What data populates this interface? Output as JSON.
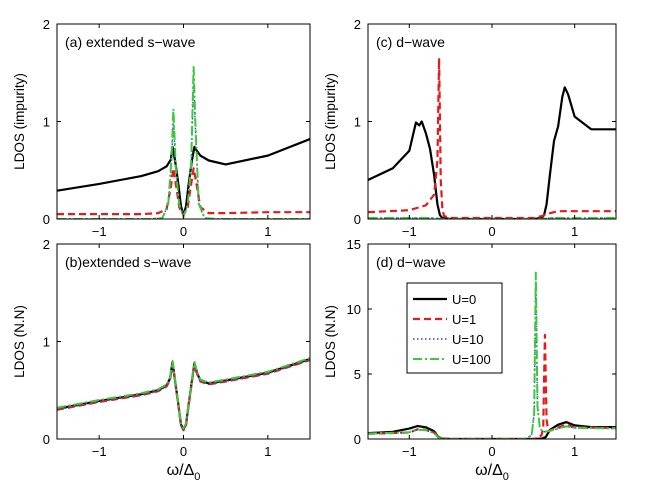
{
  "figure": {
    "xlabel_main": "ω/Δ",
    "xlabel_sub": "0"
  },
  "chart_data": [
    {
      "id": "a",
      "type": "line",
      "title": "(a) extended s−wave",
      "xlabel": "",
      "ylabel": "LDOS (impurity)",
      "xlim": [
        -1.5,
        1.5
      ],
      "ylim": [
        0,
        2
      ],
      "xticks": [
        -1,
        0,
        1
      ],
      "xtick_labels": [
        "−1",
        "0",
        "1"
      ],
      "yticks": [
        0,
        1,
        2
      ],
      "ytick_labels": [
        "0",
        "1",
        "2"
      ],
      "series": [
        {
          "name": "U=0",
          "color": "#000000",
          "dash": "",
          "width": 2.2,
          "x": [
            -1.5,
            -1.0,
            -0.5,
            -0.3,
            -0.2,
            -0.15,
            -0.13,
            -0.1,
            -0.06,
            -0.03,
            0.0,
            0.03,
            0.06,
            0.1,
            0.13,
            0.15,
            0.2,
            0.3,
            0.5,
            1.0,
            1.5
          ],
          "y": [
            0.29,
            0.36,
            0.44,
            0.49,
            0.54,
            0.61,
            0.74,
            0.6,
            0.35,
            0.13,
            0.04,
            0.13,
            0.35,
            0.6,
            0.74,
            0.71,
            0.65,
            0.6,
            0.56,
            0.65,
            0.82
          ]
        },
        {
          "name": "U=1",
          "color": "#e41a1c",
          "dash": "7,4",
          "width": 2.2,
          "x": [
            -1.5,
            -0.5,
            -0.3,
            -0.2,
            -0.15,
            -0.12,
            -0.08,
            -0.05,
            0.0,
            0.05,
            0.08,
            0.12,
            0.15,
            0.2,
            0.3,
            0.5,
            1.0,
            1.5
          ],
          "y": [
            0.05,
            0.05,
            0.06,
            0.1,
            0.33,
            0.52,
            0.3,
            0.12,
            0.04,
            0.12,
            0.3,
            0.52,
            0.38,
            0.12,
            0.06,
            0.06,
            0.07,
            0.07
          ]
        },
        {
          "name": "U=10",
          "color": "#1f4fbf",
          "dash": "1.5,2.5",
          "width": 1.4,
          "x": [
            -1.5,
            -0.4,
            -0.25,
            -0.18,
            -0.14,
            -0.12,
            -0.09,
            -0.05,
            0.0,
            0.05,
            0.09,
            0.12,
            0.14,
            0.18,
            0.25,
            0.4,
            1.5
          ],
          "y": [
            0.0,
            0.0,
            0.01,
            0.15,
            0.6,
            1.05,
            0.5,
            0.15,
            0.02,
            0.15,
            0.5,
            1.45,
            0.95,
            0.15,
            0.01,
            0.0,
            0.0
          ]
        },
        {
          "name": "U=100",
          "color": "#3cc83c",
          "dash": "9,3,2,3",
          "width": 2.0,
          "x": [
            -1.5,
            -0.4,
            -0.25,
            -0.18,
            -0.14,
            -0.12,
            -0.09,
            -0.05,
            0.0,
            0.05,
            0.09,
            0.12,
            0.14,
            0.18,
            0.25,
            0.4,
            1.5
          ],
          "y": [
            0.0,
            0.0,
            0.01,
            0.16,
            0.65,
            1.13,
            0.5,
            0.15,
            0.02,
            0.15,
            0.55,
            1.56,
            1.0,
            0.16,
            0.01,
            0.0,
            0.0
          ]
        }
      ]
    },
    {
      "id": "b",
      "type": "line",
      "title": "(b)extended s−wave",
      "xlabel": "ω/Δ0",
      "ylabel": "LDOS (N.N)",
      "xlim": [
        -1.5,
        1.5
      ],
      "ylim": [
        0,
        2
      ],
      "xticks": [
        -1,
        0,
        1
      ],
      "xtick_labels": [
        "−1",
        "0",
        "1"
      ],
      "yticks": [
        0,
        1,
        2
      ],
      "ytick_labels": [
        "0",
        "1",
        "2"
      ],
      "series": [
        {
          "name": "U=0",
          "color": "#000000",
          "dash": "",
          "width": 2.2,
          "x": [
            -1.5,
            -1.0,
            -0.5,
            -0.3,
            -0.2,
            -0.16,
            -0.13,
            -0.1,
            -0.06,
            -0.03,
            0.0,
            0.03,
            0.06,
            0.1,
            0.13,
            0.16,
            0.2,
            0.3,
            0.5,
            1.0,
            1.5
          ],
          "y": [
            0.31,
            0.39,
            0.46,
            0.5,
            0.55,
            0.62,
            0.79,
            0.6,
            0.35,
            0.15,
            0.1,
            0.15,
            0.35,
            0.6,
            0.78,
            0.68,
            0.6,
            0.57,
            0.6,
            0.68,
            0.82
          ]
        },
        {
          "name": "U=1",
          "color": "#e41a1c",
          "dash": "7,4",
          "width": 2.2,
          "x": [
            -1.5,
            -1.0,
            -0.5,
            -0.3,
            -0.2,
            -0.16,
            -0.13,
            -0.1,
            -0.06,
            -0.03,
            0.0,
            0.03,
            0.06,
            0.1,
            0.13,
            0.16,
            0.2,
            0.3,
            0.5,
            1.0,
            1.5
          ],
          "y": [
            0.3,
            0.38,
            0.45,
            0.49,
            0.54,
            0.61,
            0.77,
            0.59,
            0.34,
            0.14,
            0.09,
            0.14,
            0.34,
            0.59,
            0.76,
            0.67,
            0.59,
            0.56,
            0.59,
            0.67,
            0.81
          ]
        },
        {
          "name": "U=10",
          "color": "#1f4fbf",
          "dash": "1.5,2.5",
          "width": 1.4,
          "x": [
            -1.5,
            -1.0,
            -0.5,
            -0.3,
            -0.2,
            -0.16,
            -0.13,
            -0.1,
            -0.06,
            -0.03,
            0.0,
            0.03,
            0.06,
            0.1,
            0.13,
            0.16,
            0.2,
            0.3,
            0.5,
            1.0,
            1.5
          ],
          "y": [
            0.3,
            0.38,
            0.45,
            0.49,
            0.54,
            0.61,
            0.76,
            0.59,
            0.34,
            0.14,
            0.09,
            0.14,
            0.34,
            0.59,
            0.75,
            0.67,
            0.59,
            0.56,
            0.59,
            0.67,
            0.81
          ]
        },
        {
          "name": "U=100",
          "color": "#3cc83c",
          "dash": "9,3,2,3",
          "width": 2.0,
          "x": [
            -1.5,
            -1.0,
            -0.5,
            -0.3,
            -0.2,
            -0.16,
            -0.13,
            -0.1,
            -0.06,
            -0.03,
            0.0,
            0.03,
            0.06,
            0.1,
            0.13,
            0.16,
            0.2,
            0.3,
            0.5,
            1.0,
            1.5
          ],
          "y": [
            0.32,
            0.4,
            0.47,
            0.51,
            0.56,
            0.63,
            0.8,
            0.61,
            0.36,
            0.16,
            0.11,
            0.16,
            0.36,
            0.61,
            0.79,
            0.69,
            0.61,
            0.58,
            0.61,
            0.69,
            0.83
          ]
        }
      ]
    },
    {
      "id": "c",
      "type": "line",
      "title": "(c) d−wave",
      "xlabel": "",
      "ylabel": "LDOS (impurity)",
      "xlim": [
        -1.5,
        1.5
      ],
      "ylim": [
        0,
        2
      ],
      "xticks": [
        -1,
        0,
        1
      ],
      "xtick_labels": [
        "−1",
        "0",
        "1"
      ],
      "yticks": [
        0,
        1,
        2
      ],
      "ytick_labels": [
        "0",
        "1",
        "2"
      ],
      "series": [
        {
          "name": "U=0",
          "color": "#000000",
          "dash": "",
          "width": 2.2,
          "x": [
            -1.5,
            -1.2,
            -1.0,
            -0.92,
            -0.88,
            -0.85,
            -0.8,
            -0.75,
            -0.7,
            -0.66,
            -0.63,
            -0.6,
            -0.5,
            0.5,
            0.6,
            0.63,
            0.66,
            0.7,
            0.75,
            0.8,
            0.85,
            0.88,
            0.92,
            1.0,
            1.2,
            1.5
          ],
          "y": [
            0.4,
            0.52,
            0.7,
            0.99,
            0.96,
            1.0,
            0.88,
            0.72,
            0.45,
            0.15,
            0.04,
            0.01,
            0.0,
            0.0,
            0.01,
            0.04,
            0.15,
            0.45,
            0.8,
            0.95,
            1.25,
            1.35,
            1.28,
            1.05,
            0.92,
            0.92
          ]
        },
        {
          "name": "U=1",
          "color": "#e41a1c",
          "dash": "7,4",
          "width": 2.2,
          "x": [
            -1.5,
            -1.0,
            -0.8,
            -0.7,
            -0.66,
            -0.64,
            -0.62,
            -0.6,
            -0.58,
            -0.5,
            0.5,
            0.6,
            0.7,
            0.8,
            1.0,
            1.5
          ],
          "y": [
            0.07,
            0.09,
            0.14,
            0.25,
            0.6,
            1.65,
            0.4,
            0.1,
            0.03,
            0.01,
            0.01,
            0.03,
            0.06,
            0.08,
            0.08,
            0.08
          ]
        },
        {
          "name": "U=10",
          "color": "#1f4fbf",
          "dash": "1.5,2.5",
          "width": 1.4,
          "x": [
            -1.5,
            -0.7,
            -0.6,
            0.6,
            0.7,
            1.5
          ],
          "y": [
            0.01,
            0.01,
            0.0,
            0.0,
            0.01,
            0.01
          ]
        },
        {
          "name": "U=100",
          "color": "#3cc83c",
          "dash": "9,3,2,3",
          "width": 2.0,
          "x": [
            -1.5,
            -0.7,
            -0.6,
            0.6,
            0.7,
            1.5
          ],
          "y": [
            0.01,
            0.01,
            0.0,
            0.0,
            0.01,
            0.01
          ]
        }
      ]
    },
    {
      "id": "d",
      "type": "line",
      "title": "(d) d−wave",
      "xlabel": "ω/Δ0",
      "ylabel": "LDOS (N.N)",
      "xlim": [
        -1.5,
        1.5
      ],
      "ylim": [
        0,
        15
      ],
      "xticks": [
        -1,
        0,
        1
      ],
      "xtick_labels": [
        "−1",
        "0",
        "1"
      ],
      "yticks": [
        0,
        5,
        10,
        15
      ],
      "ytick_labels": [
        "0",
        "5",
        "10",
        "15"
      ],
      "legend": {
        "position": "center-left",
        "entries": [
          "U=0",
          "U=1",
          "U=10",
          "U=100"
        ]
      },
      "series": [
        {
          "name": "U=0",
          "color": "#000000",
          "dash": "",
          "width": 2.2,
          "x": [
            -1.5,
            -1.2,
            -1.0,
            -0.9,
            -0.85,
            -0.8,
            -0.7,
            -0.65,
            -0.6,
            -0.5,
            0.5,
            0.6,
            0.65,
            0.7,
            0.8,
            0.9,
            1.0,
            1.2,
            1.5
          ],
          "y": [
            0.45,
            0.55,
            0.8,
            1.0,
            0.95,
            0.9,
            0.6,
            0.15,
            0.03,
            0.0,
            0.0,
            0.03,
            0.15,
            0.7,
            1.1,
            1.3,
            1.05,
            0.92,
            0.92
          ]
        },
        {
          "name": "U=1",
          "color": "#e41a1c",
          "dash": "7,4",
          "width": 2.2,
          "x": [
            -1.5,
            -1.0,
            -0.9,
            -0.8,
            -0.7,
            -0.65,
            -0.6,
            -0.5,
            0.5,
            0.55,
            0.6,
            0.62,
            0.64,
            0.66,
            0.68,
            0.7,
            0.8,
            0.9,
            1.0,
            1.5
          ],
          "y": [
            0.4,
            0.5,
            0.75,
            0.7,
            0.5,
            0.12,
            0.02,
            0.0,
            0.0,
            0.05,
            0.3,
            1.0,
            8.0,
            1.5,
            0.6,
            0.65,
            0.9,
            1.1,
            0.9,
            0.85
          ]
        },
        {
          "name": "U=10",
          "color": "#1f4fbf",
          "dash": "1.5,2.5",
          "width": 1.4,
          "x": [
            -1.5,
            -1.0,
            -0.9,
            -0.8,
            -0.7,
            -0.65,
            -0.6,
            -0.5,
            0.4,
            0.48,
            0.51,
            0.53,
            0.55,
            0.58,
            0.62,
            0.7,
            0.8,
            0.9,
            1.0,
            1.5
          ],
          "y": [
            0.4,
            0.5,
            0.7,
            0.66,
            0.45,
            0.1,
            0.02,
            0.0,
            0.0,
            0.3,
            2.0,
            12.2,
            2.5,
            0.8,
            0.55,
            0.6,
            0.8,
            0.95,
            0.85,
            0.8
          ]
        },
        {
          "name": "U=100",
          "color": "#3cc83c",
          "dash": "9,3,2,3",
          "width": 2.0,
          "x": [
            -1.5,
            -1.0,
            -0.9,
            -0.8,
            -0.7,
            -0.65,
            -0.6,
            -0.5,
            0.4,
            0.48,
            0.51,
            0.53,
            0.55,
            0.58,
            0.62,
            0.7,
            0.8,
            0.9,
            1.0,
            1.5
          ],
          "y": [
            0.42,
            0.52,
            0.72,
            0.68,
            0.47,
            0.1,
            0.02,
            0.0,
            0.0,
            0.3,
            2.0,
            12.8,
            2.5,
            0.8,
            0.55,
            0.62,
            0.82,
            0.97,
            0.86,
            0.82
          ]
        }
      ]
    }
  ]
}
